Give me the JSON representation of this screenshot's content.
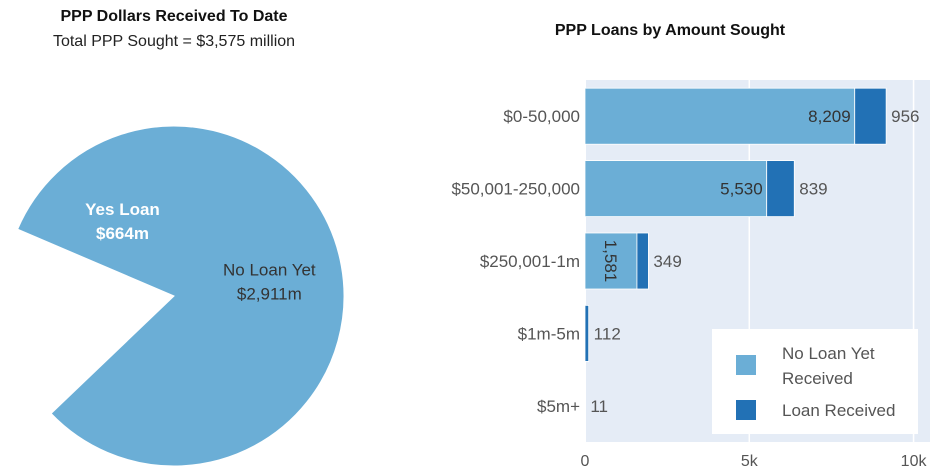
{
  "chart_data": [
    {
      "type": "pie",
      "title": "PPP Dollars Received To Date",
      "subtitle": "Total PPP Sought = $3,575 million",
      "slices": [
        {
          "label": "Yes Loan",
          "value_label": "$664m",
          "value": 664,
          "color": "#2271b5"
        },
        {
          "label": "No Loan Yet",
          "value_label": "$2,911m",
          "value": 2911,
          "color": "#6baed6"
        }
      ]
    },
    {
      "type": "bar",
      "orientation": "horizontal",
      "stacked": true,
      "title": "PPP Loans by Amount Sought",
      "categories": [
        "$0-50,000",
        "$50,001-250,000",
        "$250,001-1m",
        "$1m-5m",
        "$5m+"
      ],
      "series": [
        {
          "name": "No Loan Yet Received",
          "values": [
            8209,
            5530,
            1581,
            0,
            0
          ],
          "labels": [
            "8,209",
            "5,530",
            "1,581",
            "",
            ""
          ],
          "color": "#6baed6"
        },
        {
          "name": "Loan Received",
          "values": [
            956,
            839,
            349,
            112,
            11
          ],
          "labels": [
            "956",
            "839",
            "349",
            "112",
            "11"
          ],
          "color": "#2271b5"
        }
      ],
      "xlim": [
        0,
        10500
      ],
      "x_ticks": [
        0,
        5000,
        10000
      ],
      "x_tick_labels": [
        "0",
        "5k",
        "10k"
      ],
      "legend": {
        "placement": "bottom-right",
        "entries": [
          "No Loan Yet Received",
          "Loan Received"
        ]
      },
      "plot_background": "#e5ecf6",
      "grid": true
    }
  ]
}
